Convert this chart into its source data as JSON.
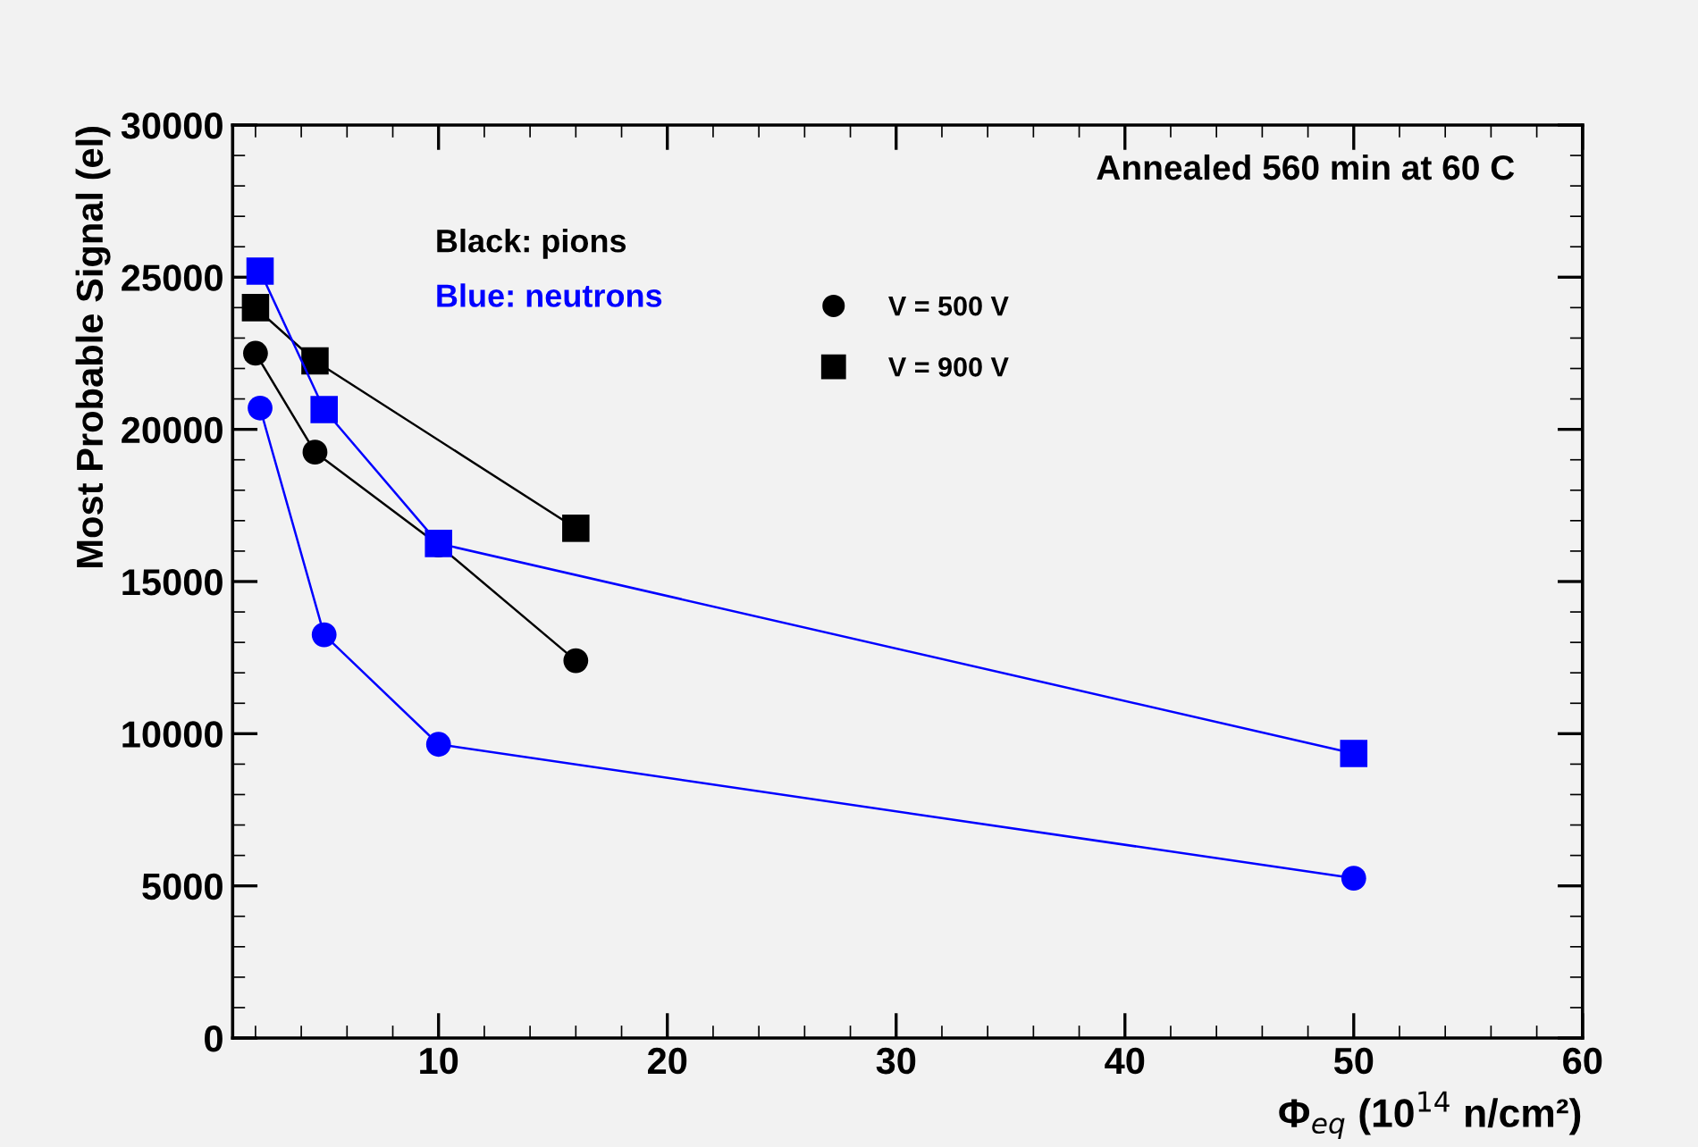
{
  "chart_data": {
    "type": "line",
    "xlabel": "Φ$_{eq}$ (10$^{14}$ n/cm²)",
    "ylabel": "Most Probable Signal (el)",
    "annotations": [
      "Annealed 560 min at 60 C",
      "Black: pions",
      "Blue: neutrons"
    ],
    "series": [
      {
        "name": "V = 500 V",
        "color": "#000000",
        "marker": "circle",
        "x": [
          2,
          4.6,
          10,
          16
        ],
        "values": [
          22500,
          19250,
          16200,
          12400
        ]
      },
      {
        "name": "V = 900 V",
        "color": "#000000",
        "marker": "square",
        "x": [
          2,
          4.6,
          16
        ],
        "values": [
          24000,
          22250,
          16750
        ]
      },
      {
        "color": "#0000ff",
        "marker": "circle",
        "x": [
          2.2,
          5,
          10,
          50
        ],
        "values": [
          20700,
          13250,
          9650,
          5250
        ]
      },
      {
        "color": "#0000ff",
        "marker": "square",
        "x": [
          2.2,
          5,
          10,
          50
        ],
        "values": [
          25200,
          20650,
          16250,
          9350
        ]
      }
    ],
    "xlim": [
      1,
      60
    ],
    "xticks": [
      10,
      20,
      30,
      40,
      50,
      60
    ],
    "ylim": [
      0,
      30000
    ],
    "yticks": [
      0,
      5000,
      10000,
      15000,
      20000,
      25000,
      30000
    ],
    "grid": false,
    "legend": "top",
    "line_style": "solid"
  }
}
